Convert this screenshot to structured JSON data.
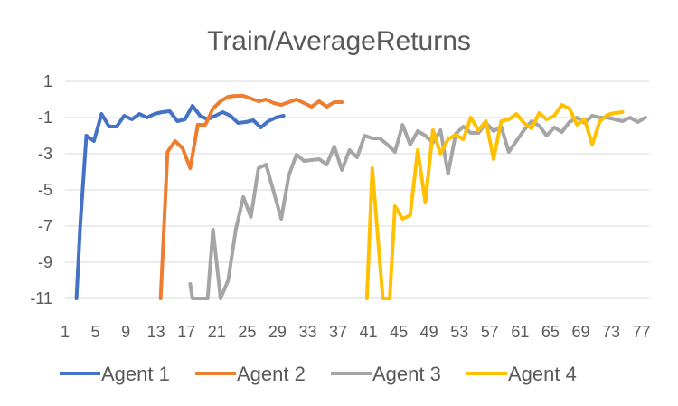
{
  "chart_data": {
    "type": "line",
    "title": "Train/AverageReturns",
    "xlabel": "",
    "ylabel": "",
    "ylim": [
      -11,
      1
    ],
    "xlim": [
      1,
      78
    ],
    "yticks": [
      1,
      -1,
      -3,
      -5,
      -7,
      -9,
      -11
    ],
    "xticks": [
      1,
      5,
      9,
      13,
      17,
      21,
      25,
      29,
      33,
      37,
      41,
      45,
      49,
      53,
      57,
      61,
      65,
      69,
      73,
      77
    ],
    "grid": true,
    "legend_position": "bottom",
    "series": [
      {
        "name": "Agent 1",
        "color": "#4472C4",
        "x": [
          2.5,
          3,
          3.8,
          4.8,
          5.8,
          6.8,
          7.8,
          8.8,
          9.8,
          10.8,
          11.8,
          12.8,
          13.8,
          14.8,
          15.8,
          16.8,
          17.8,
          18.8,
          19.8,
          20.8,
          21.8,
          22.8,
          23.8,
          24.8,
          25.8,
          26.8,
          27.8,
          28.8,
          29.8
        ],
        "y": [
          -11,
          -6.9,
          -2,
          -2.3,
          -0.8,
          -1.5,
          -1.5,
          -0.9,
          -1.1,
          -0.8,
          -1.0,
          -0.8,
          -0.7,
          -0.65,
          -1.2,
          -1.1,
          -0.35,
          -0.9,
          -1.1,
          -0.9,
          -0.7,
          -0.9,
          -1.3,
          -1.25,
          -1.15,
          -1.55,
          -1.2,
          -1.0,
          -0.9
        ]
      },
      {
        "name": "Agent 2",
        "color": "#ED7D31",
        "x": [
          13.6,
          14.5,
          15.5,
          16.5,
          17.5,
          18.5,
          19.5,
          20.5,
          21.5,
          22.5,
          23.5,
          24.5,
          25.5,
          26.5,
          27.5,
          28.5,
          29.5,
          30.5,
          31.5,
          32.5,
          33.5,
          34.5,
          35.5,
          36.5,
          37.5
        ],
        "y": [
          -11,
          -2.9,
          -2.3,
          -2.7,
          -3.8,
          -1.4,
          -1.4,
          -0.5,
          -0.1,
          0.15,
          0.2,
          0.2,
          0.05,
          -0.1,
          0.0,
          -0.2,
          -0.3,
          -0.15,
          0.0,
          -0.2,
          -0.4,
          -0.1,
          -0.4,
          -0.15,
          -0.15
        ]
      },
      {
        "name": "Agent 3",
        "color": "#A5A5A5",
        "x": [
          17.5,
          17.8,
          18.5,
          19.8,
          20.5,
          21.5,
          22.5,
          23.5,
          24.5,
          25.5,
          26.5,
          27.5,
          28.5,
          29.5,
          30.5,
          31.5,
          32.5,
          33.5,
          34.5,
          35.5,
          36.5,
          37.5,
          38.5,
          39.5,
          40.5,
          41.5,
          42.5,
          43.5,
          44.5,
          45.5,
          46.5,
          47.5,
          48.5,
          49.5,
          50.5,
          51.5,
          52.5,
          53.5,
          54.5,
          55.5,
          56.5,
          57.5,
          58.5,
          59.5,
          60.5,
          61.5,
          62.5,
          63.5,
          64.5,
          65.5,
          66.5,
          67.5,
          68.5,
          69.5,
          70.5,
          71.5,
          72.5,
          73.5,
          74.5,
          75.5,
          76.5,
          77.5
        ],
        "y": [
          -10.2,
          -11,
          -11,
          -11,
          -7.2,
          -11,
          -10,
          -7.2,
          -5.4,
          -6.5,
          -3.8,
          -3.6,
          -5.1,
          -6.6,
          -4.2,
          -3.05,
          -3.4,
          -3.35,
          -3.3,
          -3.6,
          -2.6,
          -3.9,
          -2.8,
          -3.2,
          -2.0,
          -2.15,
          -2.15,
          -2.5,
          -2.9,
          -1.4,
          -2.5,
          -1.75,
          -2.0,
          -2.4,
          -1.7,
          -4.1,
          -1.9,
          -1.5,
          -1.85,
          -1.85,
          -1.3,
          -1.75,
          -1.5,
          -2.9,
          -2.3,
          -1.7,
          -1.2,
          -1.45,
          -2.0,
          -1.55,
          -1.8,
          -1.25,
          -1.0,
          -1.3,
          -0.9,
          -1.0,
          -1.0,
          -1.1,
          -1.2,
          -1.0,
          -1.25,
          -1.0
        ]
      },
      {
        "name": "Agent 4",
        "color": "#FFC000",
        "x": [
          40.8,
          41.5,
          42.5,
          42.9,
          43.8,
          44.5,
          45.5,
          46.5,
          47.5,
          48.5,
          49.5,
          50.5,
          51.5,
          52.5,
          53.5,
          54.5,
          55.5,
          56.5,
          57.5,
          58.5,
          59.5,
          60.5,
          61.5,
          62.5,
          63.5,
          64.5,
          65.5,
          66.5,
          67.5,
          68.5,
          69.5,
          70.5,
          71.5,
          72.5,
          73.5,
          74.5
        ],
        "y": [
          -11,
          -3.8,
          -9,
          -11,
          -11,
          -5.9,
          -6.6,
          -6.4,
          -2.8,
          -5.7,
          -1.7,
          -3.0,
          -2.2,
          -1.95,
          -2.2,
          -1.0,
          -1.7,
          -1.2,
          -3.3,
          -1.2,
          -1.1,
          -0.8,
          -1.3,
          -1.6,
          -0.75,
          -1.1,
          -0.9,
          -0.3,
          -0.5,
          -1.4,
          -1.1,
          -2.5,
          -1.2,
          -0.85,
          -0.75,
          -0.7
        ]
      }
    ]
  }
}
